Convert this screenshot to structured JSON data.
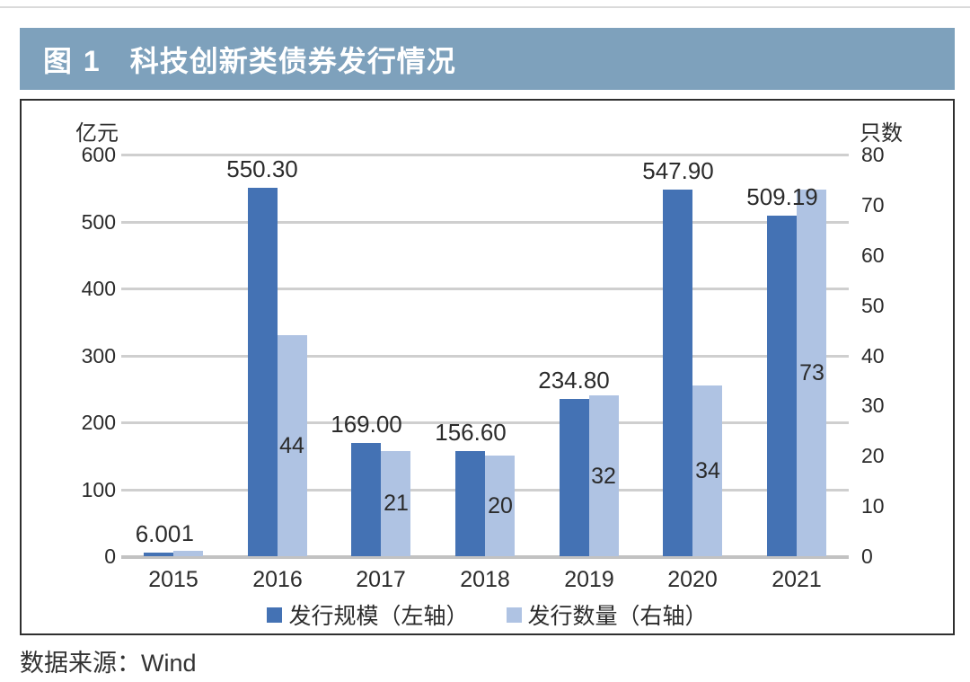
{
  "header": {
    "figure_label": "图 1",
    "title": "科技创新类债券发行情况"
  },
  "source_note": "数据来源：Wind",
  "colors": {
    "header_bg": "#7EA1BC",
    "header_text": "#FFFFFF",
    "bar_primary": "#4472B4",
    "bar_secondary": "#AFC3E3",
    "gridline": "#CFCFCF",
    "baseline": "#C2C2C2",
    "panel_border": "#2F2F2F",
    "text": "#2B2B2B"
  },
  "chart_data": {
    "type": "bar",
    "title": "科技创新类债券发行情况",
    "categories": [
      "2015",
      "2016",
      "2017",
      "2018",
      "2019",
      "2020",
      "2021"
    ],
    "series": [
      {
        "name": "发行规模（左轴）",
        "axis": "left",
        "color": "#4472B4",
        "values": [
          6.0,
          550.3,
          169.0,
          156.6,
          234.8,
          547.9,
          509.19
        ],
        "labels": [
          "6.00",
          "550.30",
          "169.00",
          "156.60",
          "234.80",
          "547.90",
          "509.19"
        ]
      },
      {
        "name": "发行数量（右轴）",
        "axis": "right",
        "color": "#AFC3E3",
        "values": [
          1,
          44,
          21,
          20,
          32,
          34,
          73
        ],
        "labels": [
          "1",
          "44",
          "21",
          "20",
          "32",
          "34",
          "73"
        ]
      }
    ],
    "left_axis": {
      "title": "亿元",
      "min": 0,
      "max": 600,
      "step": 100
    },
    "right_axis": {
      "title": "只数",
      "min": 0,
      "max": 80,
      "step": 10
    },
    "grid": true,
    "legend_position": "bottom"
  }
}
